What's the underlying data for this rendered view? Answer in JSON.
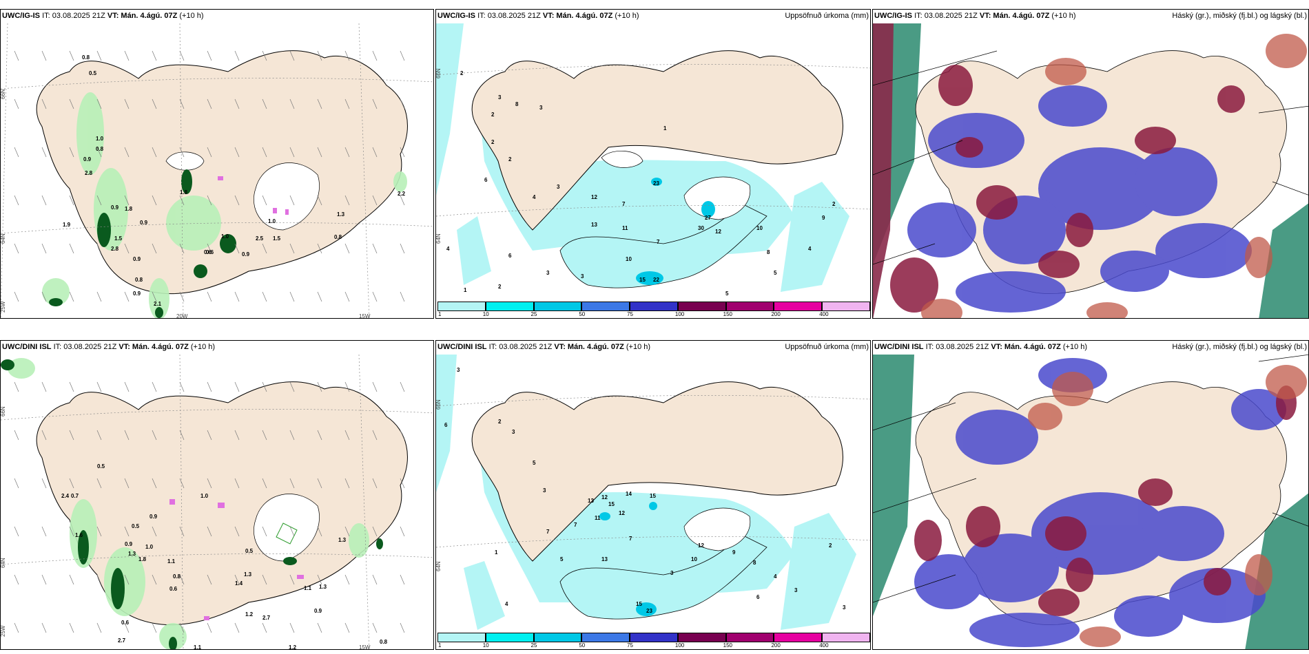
{
  "panels": [
    {
      "id": "igis-wind",
      "title_model": "UWC/IG-IS",
      "title_it": "IT: 03.08.2025 21Z",
      "title_vt": "VT: Mán. 4.ágú. 07Z",
      "title_lead": "(+10 h)",
      "right_label": ""
    },
    {
      "id": "igis-precip",
      "title_model": "UWC/IG-IS",
      "title_it": "IT: 03.08.2025 21Z",
      "title_vt": "VT: Mán. 4.ágú. 07Z",
      "title_lead": "(+10 h)",
      "right_label": "Uppsöfnuð úrkoma (mm)"
    },
    {
      "id": "igis-cloud",
      "title_model": "UWC/IG-IS",
      "title_it": "IT: 03.08.2025 21Z",
      "title_vt": "VT: Mán. 4.ágú. 07Z",
      "title_lead": "(+10 h)",
      "right_label": "Háský (gr.), miðský (fj.bl.) og lágský (bl.)"
    },
    {
      "id": "dini-wind",
      "title_model": "UWC/DINI ISL",
      "title_it": "IT: 03.08.2025 21Z",
      "title_vt": "VT: Mán. 4.ágú. 07Z",
      "title_lead": "(+10 h)",
      "right_label": ""
    },
    {
      "id": "dini-precip",
      "title_model": "UWC/DINI ISL",
      "title_it": "IT: 03.08.2025 21Z",
      "title_vt": "VT: Mán. 4.ágú. 07Z",
      "title_lead": "(+10 h)",
      "right_label": "Uppsöfnuð úrkoma (mm)"
    },
    {
      "id": "dini-cloud",
      "title_model": "UWC/DINI ISL",
      "title_it": "IT: 03.08.2025 21Z",
      "title_vt": "VT: Mán. 4.ágú. 07Z",
      "title_lead": "(+10 h)",
      "right_label": "Háský (gr.), miðský (fj.bl.) og lágský (bl.)"
    }
  ],
  "grid_labels": {
    "lat66": "66N",
    "lat64": "64N",
    "lon20": "20W",
    "lon15": "15W",
    "lon25": "25W"
  },
  "colorbar": {
    "labels": [
      "1",
      "10",
      "25",
      "50",
      "75",
      "100",
      "150",
      "200",
      "400"
    ],
    "colors": [
      "#b4f5f5",
      "#00f0f0",
      "#00c8e6",
      "#3c78e6",
      "#3232c8",
      "#780050",
      "#a0006e",
      "#e600a0",
      "#f0b4f0"
    ]
  },
  "precip_top": [
    "2",
    "3",
    "8",
    "2",
    "3",
    "1",
    "2",
    "2",
    "6",
    "4",
    "3",
    "12",
    "23",
    "7",
    "11",
    "13",
    "27",
    "30",
    "12",
    "10",
    "8",
    "4",
    "2",
    "9",
    "5",
    "7",
    "3",
    "10",
    "15",
    "22",
    "2",
    "1",
    "4",
    "6",
    "3",
    "5"
  ],
  "precip_bottom": [
    "3",
    "6",
    "2",
    "3",
    "5",
    "3",
    "12",
    "15",
    "14",
    "13",
    "15",
    "7",
    "12",
    "11",
    "7",
    "13",
    "10",
    "12",
    "9",
    "8",
    "4",
    "3",
    "2",
    "1",
    "5",
    "7",
    "3",
    "15",
    "23",
    "6",
    "2",
    "4",
    "3"
  ],
  "wind_top": [
    "0.8",
    "0.5",
    "1.0",
    "0.8",
    "0.9",
    "2.8",
    "1.8",
    "0.9",
    "1.8",
    "0.9",
    "1.5",
    "2.8",
    "0.9",
    "0.8",
    "1.0",
    "0.6",
    "0.9",
    "1.0",
    "2.5",
    "1.5",
    "1.3",
    "0.8",
    "2.2",
    "1.9",
    "0.9",
    "2.1",
    "0.6"
  ],
  "wind_bottom": [
    "2.4",
    "0.7",
    "0.5",
    "1.6",
    "1.0",
    "0.9",
    "0.5",
    "0.9",
    "1.3",
    "1.1",
    "1.8",
    "2.7",
    "0.8",
    "0.6",
    "1.0",
    "0.5",
    "1.3",
    "1.1",
    "1.3",
    "1.2",
    "0.9",
    "1.2",
    "1.1",
    "0.8",
    "0.6",
    "2.7",
    "1.4",
    "1.3"
  ]
}
